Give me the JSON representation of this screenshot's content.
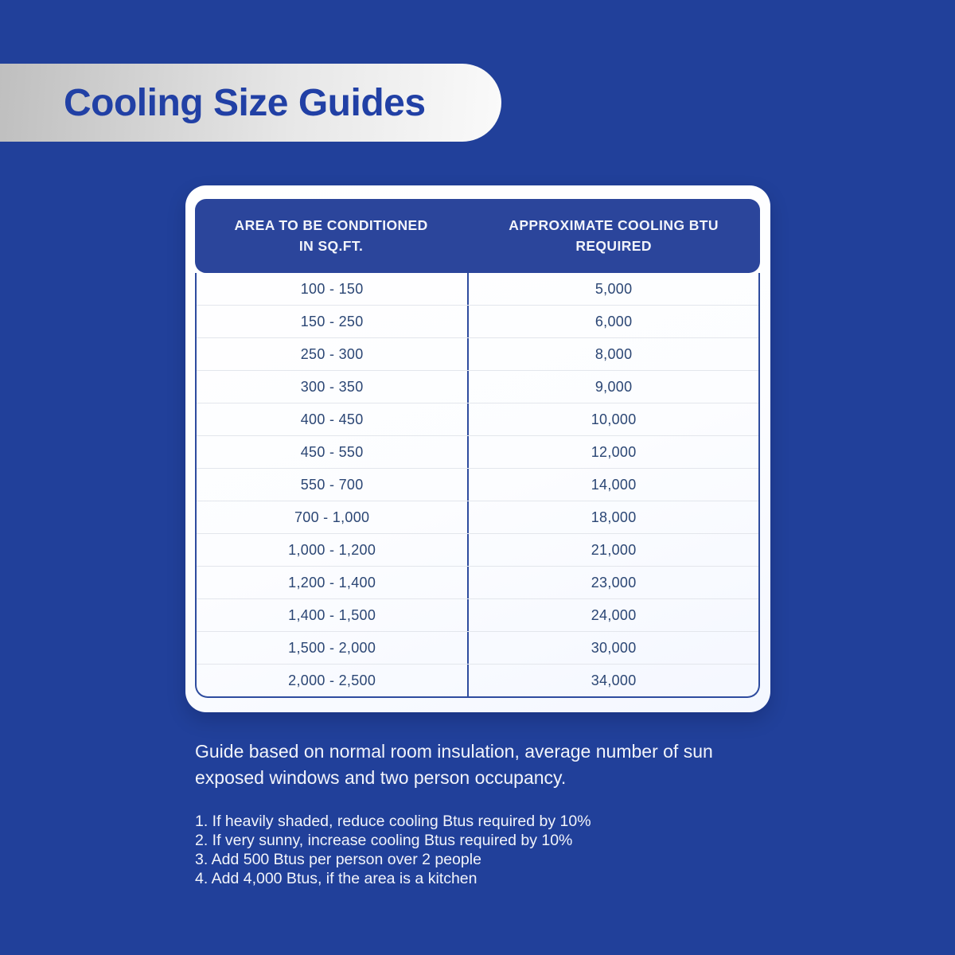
{
  "banner": {
    "title": "Cooling Size Guides"
  },
  "table": {
    "headers": [
      "AREA TO BE CONDITIONED\nIN SQ.FT.",
      "APPROXIMATE COOLING BTU\nREQUIRED"
    ],
    "rows": [
      [
        "100 - 150",
        "5,000"
      ],
      [
        "150 - 250",
        "6,000"
      ],
      [
        "250 - 300",
        "8,000"
      ],
      [
        "300 - 350",
        "9,000"
      ],
      [
        "400 - 450",
        "10,000"
      ],
      [
        "450 - 550",
        "12,000"
      ],
      [
        "550 - 700",
        "14,000"
      ],
      [
        "700 - 1,000",
        "18,000"
      ],
      [
        "1,000 - 1,200",
        "21,000"
      ],
      [
        "1,200 - 1,400",
        "23,000"
      ],
      [
        "1,400 - 1,500",
        "24,000"
      ],
      [
        "1,500 - 2,000",
        "30,000"
      ],
      [
        "2,000 - 2,500",
        "34,000"
      ]
    ]
  },
  "guide_note": "Guide based on normal room insulation, average number of sun exposed windows and two person occupancy.",
  "notes": [
    "1.  If heavily shaded, reduce cooling Btus required by 10%",
    "2. If very sunny, increase cooling Btus required by 10%",
    "3. Add 500 Btus per person over 2 people",
    "4. Add 4,000 Btus, if the area is a kitchen"
  ],
  "colors": {
    "background": "#21409A",
    "header_blue": "#2B459B",
    "border_blue": "#2E4C9F",
    "title_blue": "#2140A5",
    "table_text": "#2B4674",
    "banner_gradient_start": "#BFBFBF",
    "banner_gradient_end": "#FAFAFA"
  }
}
